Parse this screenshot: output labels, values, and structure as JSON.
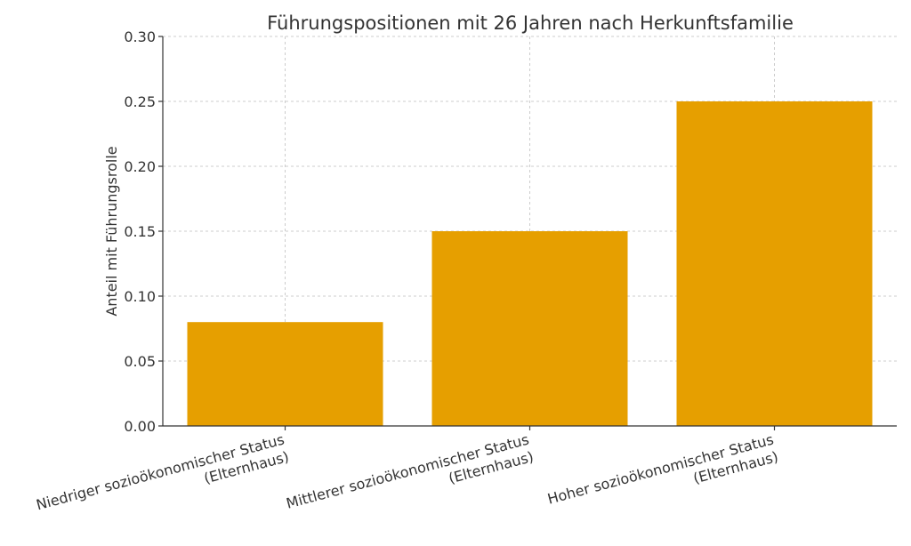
{
  "chart_data": {
    "type": "bar",
    "title": "Führungspositionen mit 26 Jahren nach Herkunftsfamilie",
    "xlabel": "",
    "ylabel": "Anteil mit Führungsrolle",
    "categories": [
      [
        "Niedriger sozioökonomischer Status",
        "(Elternhaus)"
      ],
      [
        "Mittlerer sozioökonomischer Status",
        "(Elternhaus)"
      ],
      [
        "Hoher sozioökonomischer Status",
        "(Elternhaus)"
      ]
    ],
    "values": [
      0.08,
      0.15,
      0.25
    ],
    "ylim": [
      0,
      0.3
    ],
    "yticks": [
      "0.00",
      "0.05",
      "0.10",
      "0.15",
      "0.20",
      "0.25",
      "0.30"
    ],
    "grid": true,
    "colors": {
      "bar": "#E69F00"
    }
  }
}
